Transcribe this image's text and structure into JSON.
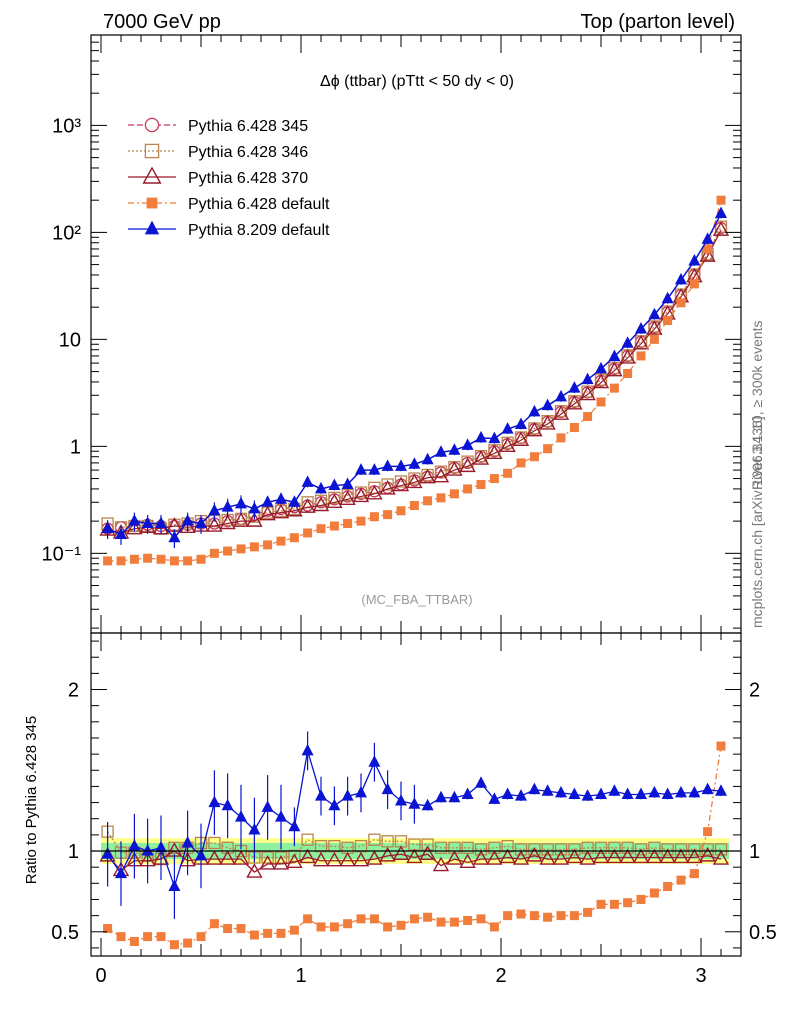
{
  "header": {
    "left": "7000 GeV pp",
    "right": "Top (parton level)"
  },
  "side": {
    "rivet": "Rivet 3.1.10, ≥ 300k events",
    "mcplots": "mcplots.cern.ch [arXiv:1306.3436]"
  },
  "analysis_tag": "(MC_FBA_TTBAR)",
  "chart_data": [
    {
      "type": "line",
      "panel": "main",
      "title": "Δϕ (ttbar) (pTtt < 50 dy < 0)",
      "y_scale": "log",
      "xlim": [
        -0.05,
        3.2
      ],
      "ylim": [
        0.018,
        7000
      ],
      "y_tick_labels": [
        "10⁻¹",
        "1",
        "10",
        "10²",
        "10³"
      ],
      "y_tick_values": [
        0.1,
        1,
        10,
        100,
        1000
      ],
      "x": [
        0.033,
        0.1,
        0.167,
        0.233,
        0.3,
        0.367,
        0.433,
        0.5,
        0.567,
        0.633,
        0.7,
        0.767,
        0.833,
        0.9,
        0.967,
        1.033,
        1.1,
        1.167,
        1.233,
        1.3,
        1.367,
        1.433,
        1.5,
        1.567,
        1.633,
        1.7,
        1.767,
        1.833,
        1.9,
        1.967,
        2.033,
        2.1,
        2.167,
        2.233,
        2.3,
        2.367,
        2.433,
        2.5,
        2.567,
        2.633,
        2.7,
        2.767,
        2.833,
        2.9,
        2.967,
        3.033,
        3.1
      ],
      "series": [
        {
          "name": "Pythia 6.428 345",
          "color": "#c8385a",
          "marker": "open-circle",
          "dash": "6,3",
          "values": [
            0.17,
            0.175,
            0.18,
            0.185,
            0.18,
            0.18,
            0.185,
            0.19,
            0.19,
            0.2,
            0.21,
            0.23,
            0.25,
            0.26,
            0.27,
            0.28,
            0.3,
            0.32,
            0.34,
            0.36,
            0.38,
            0.41,
            0.44,
            0.48,
            0.52,
            0.57,
            0.63,
            0.7,
            0.8,
            0.9,
            1.05,
            1.2,
            1.45,
            1.7,
            2.1,
            2.6,
            3.2,
            4.1,
            5.3,
            7.0,
            9.5,
            13,
            18,
            26,
            40,
            62,
            110
          ]
        },
        {
          "name": "Pythia 6.428 346",
          "color": "#b8864e",
          "marker": "open-square",
          "dash": "2,2",
          "values": [
            0.19,
            0.175,
            0.18,
            0.18,
            0.17,
            0.185,
            0.19,
            0.2,
            0.2,
            0.205,
            0.21,
            0.22,
            0.24,
            0.25,
            0.26,
            0.3,
            0.31,
            0.33,
            0.35,
            0.37,
            0.41,
            0.44,
            0.47,
            0.5,
            0.54,
            0.58,
            0.64,
            0.72,
            0.81,
            0.92,
            1.08,
            1.21,
            1.47,
            1.72,
            2.13,
            2.64,
            3.25,
            4.2,
            5.4,
            7.1,
            9.6,
            13.2,
            18.2,
            26.2,
            40.5,
            62.5,
            113
          ]
        },
        {
          "name": "Pythia 6.428 370",
          "color": "#9a1b2b",
          "marker": "open-triangle",
          "dash": "",
          "values": [
            0.165,
            0.155,
            0.17,
            0.175,
            0.17,
            0.18,
            0.175,
            0.18,
            0.18,
            0.19,
            0.2,
            0.2,
            0.23,
            0.24,
            0.25,
            0.27,
            0.28,
            0.3,
            0.32,
            0.34,
            0.36,
            0.4,
            0.43,
            0.46,
            0.51,
            0.52,
            0.6,
            0.65,
            0.76,
            0.86,
            1.0,
            1.14,
            1.4,
            1.62,
            2.0,
            2.5,
            3.05,
            3.95,
            5.1,
            6.7,
            9.1,
            12.5,
            17.3,
            25,
            38.5,
            60,
            105
          ]
        },
        {
          "name": "Pythia 6.428 default",
          "color": "#f07d3c",
          "marker": "filled-square",
          "dash": "6,3,2,3",
          "values": [
            0.085,
            0.085,
            0.088,
            0.09,
            0.088,
            0.085,
            0.085,
            0.088,
            0.1,
            0.105,
            0.11,
            0.115,
            0.12,
            0.13,
            0.14,
            0.155,
            0.17,
            0.18,
            0.19,
            0.2,
            0.22,
            0.23,
            0.25,
            0.28,
            0.31,
            0.33,
            0.36,
            0.4,
            0.44,
            0.5,
            0.56,
            0.7,
            0.8,
            0.95,
            1.2,
            1.5,
            1.9,
            2.6,
            3.5,
            4.8,
            7.0,
            10,
            15,
            22,
            33,
            70,
            200
          ]
        },
        {
          "name": "Pythia 8.209 default",
          "color": "#0a14d2",
          "marker": "filled-triangle",
          "dash": "",
          "values": [
            0.17,
            0.15,
            0.2,
            0.19,
            0.19,
            0.14,
            0.2,
            0.19,
            0.25,
            0.27,
            0.29,
            0.26,
            0.3,
            0.32,
            0.3,
            0.46,
            0.4,
            0.43,
            0.44,
            0.6,
            0.6,
            0.65,
            0.65,
            0.68,
            0.75,
            0.88,
            0.92,
            1.02,
            1.2,
            1.18,
            1.45,
            1.6,
            2.1,
            2.4,
            2.9,
            3.5,
            4.2,
            5.3,
            6.9,
            9.2,
            12.5,
            17,
            24,
            36,
            54,
            86,
            150
          ]
        }
      ]
    },
    {
      "type": "line",
      "panel": "ratio",
      "ylabel": "Ratio to Pythia 6.428 345",
      "xlim": [
        -0.05,
        3.2
      ],
      "ylim": [
        0.35,
        2.35
      ],
      "x_tick_labels": [
        "0",
        "1",
        "2",
        "3"
      ],
      "x_tick_values": [
        0,
        1,
        2,
        3
      ],
      "y_tick_labels": [
        "0.5",
        "1",
        "2"
      ],
      "y_tick_values": [
        0.5,
        1,
        2
      ],
      "band": {
        "inner": [
          0.95,
          1.05
        ],
        "outer": [
          0.92,
          1.08
        ]
      },
      "series": [
        {
          "name": "Pythia 6.428 346",
          "values": [
            1.12,
            0.99,
            0.99,
            0.97,
            0.95,
            1.02,
            1.02,
            1.05,
            1.05,
            1.02,
            1.0,
            0.96,
            0.96,
            0.96,
            0.97,
            1.07,
            1.03,
            1.03,
            1.02,
            1.03,
            1.07,
            1.06,
            1.06,
            1.04,
            1.04,
            1.02,
            1.02,
            1.02,
            1.01,
            1.02,
            1.03,
            1.01,
            1.01,
            1.01,
            1.01,
            1.01,
            1.02,
            1.02,
            1.02,
            1.02,
            1.01,
            1.02,
            1.01,
            1.01,
            1.01,
            1.01,
            1.01
          ]
        },
        {
          "name": "Pythia 6.428 370",
          "values": [
            0.97,
            0.88,
            0.94,
            0.94,
            0.95,
            1.0,
            0.94,
            0.95,
            0.95,
            0.95,
            0.95,
            0.87,
            0.92,
            0.92,
            0.93,
            0.96,
            0.94,
            0.94,
            0.94,
            0.94,
            0.95,
            0.97,
            0.98,
            0.96,
            0.98,
            0.91,
            0.95,
            0.93,
            0.95,
            0.95,
            0.96,
            0.95,
            0.97,
            0.95,
            0.95,
            0.96,
            0.95,
            0.96,
            0.96,
            0.96,
            0.96,
            0.96,
            0.96,
            0.96,
            0.96,
            0.97,
            0.95
          ]
        },
        {
          "name": "Pythia 6.428 default",
          "values": [
            0.52,
            0.47,
            0.44,
            0.47,
            0.47,
            0.42,
            0.43,
            0.47,
            0.55,
            0.52,
            0.52,
            0.48,
            0.49,
            0.49,
            0.51,
            0.58,
            0.53,
            0.53,
            0.55,
            0.58,
            0.58,
            0.53,
            0.54,
            0.58,
            0.59,
            0.56,
            0.56,
            0.57,
            0.58,
            0.53,
            0.6,
            0.61,
            0.6,
            0.59,
            0.6,
            0.6,
            0.62,
            0.67,
            0.67,
            0.68,
            0.7,
            0.74,
            0.78,
            0.82,
            0.86,
            1.12,
            1.65
          ]
        },
        {
          "name": "Pythia 8.209 default",
          "values": [
            0.98,
            0.86,
            1.03,
            1.0,
            1.02,
            0.78,
            1.05,
            0.97,
            1.3,
            1.28,
            1.21,
            1.13,
            1.27,
            1.21,
            1.15,
            1.62,
            1.34,
            1.28,
            1.34,
            1.36,
            1.55,
            1.38,
            1.31,
            1.29,
            1.28,
            1.33,
            1.33,
            1.35,
            1.42,
            1.32,
            1.35,
            1.34,
            1.38,
            1.37,
            1.36,
            1.35,
            1.34,
            1.35,
            1.37,
            1.35,
            1.35,
            1.36,
            1.35,
            1.36,
            1.36,
            1.38,
            1.37
          ]
        }
      ]
    }
  ]
}
